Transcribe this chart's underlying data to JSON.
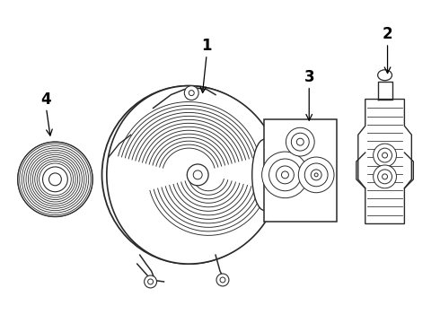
{
  "bg_color": "#ffffff",
  "line_color": "#2a2a2a",
  "label_color": "#000000",
  "fig_w": 4.9,
  "fig_h": 3.6,
  "dpi": 100
}
